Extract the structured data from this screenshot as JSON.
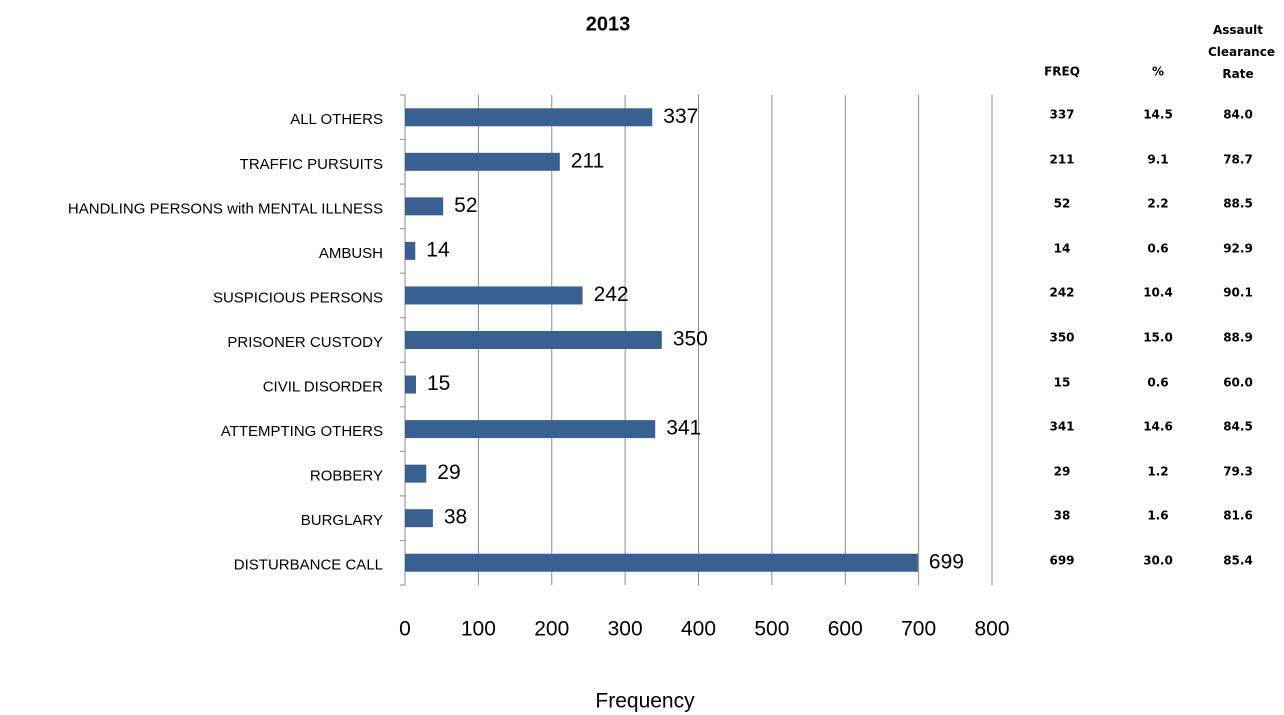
{
  "chart_data": {
    "type": "hbar",
    "title": "2013",
    "x_label": "Frequency",
    "categories": [
      "ALL OTHERS",
      "TRAFFIC PURSUITS",
      "HANDLING PERSONS with MENTAL ILLNESS",
      "AMBUSH",
      "SUSPICIOUS PERSONS",
      "PRISONER CUSTODY",
      "CIVIL DISORDER",
      "ATTEMPTING OTHERS",
      "ROBBERY",
      "BURGLARY",
      "DISTURBANCE CALL"
    ],
    "values": [
      337,
      211,
      52,
      14,
      242,
      350,
      15,
      341,
      29,
      38,
      699
    ],
    "color": "#386192",
    "xlim": [
      0,
      800
    ],
    "xticks": [
      0,
      100,
      200,
      300,
      400,
      500,
      600,
      700,
      800
    ],
    "grid": true
  },
  "table": {
    "columns": [
      "FREQ",
      "%",
      "Assault Clearance Rate"
    ],
    "rows": [
      [
        "337",
        "14.5",
        "84.0"
      ],
      [
        "211",
        "9.1",
        "78.7"
      ],
      [
        "52",
        "2.2",
        "88.5"
      ],
      [
        "14",
        "0.6",
        "92.9"
      ],
      [
        "242",
        "10.4",
        "90.1"
      ],
      [
        "350",
        "15.0",
        "88.9"
      ],
      [
        "15",
        "0.6",
        "60.0"
      ],
      [
        "341",
        "14.6",
        "84.5"
      ],
      [
        "29",
        "1.2",
        "79.3"
      ],
      [
        "38",
        "1.6",
        "81.6"
      ],
      [
        "699",
        "30.0",
        "85.4"
      ]
    ]
  }
}
